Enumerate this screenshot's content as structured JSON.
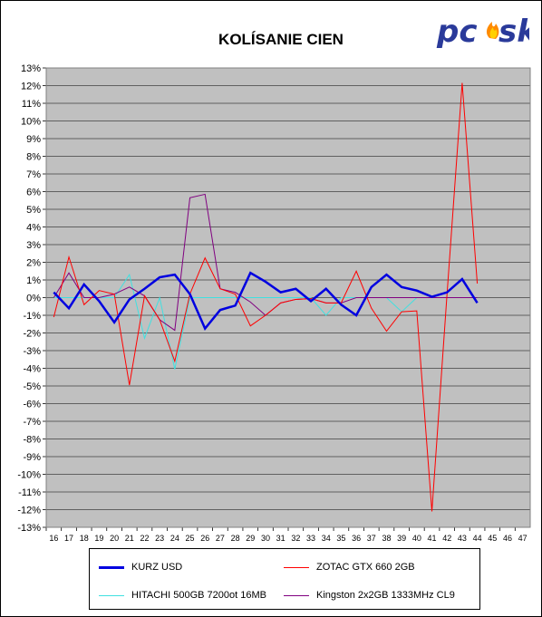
{
  "chart_data": {
    "type": "line",
    "title": "KOLÍSANIE CIEN",
    "logo_text": "pcsk",
    "xlabel": "",
    "ylabel": "",
    "x_categories": [
      "16",
      "17",
      "18",
      "19",
      "20",
      "21",
      "22",
      "23",
      "24",
      "25",
      "26",
      "27",
      "28",
      "29",
      "30",
      "31",
      "32",
      "33",
      "34",
      "35",
      "36",
      "37",
      "38",
      "39",
      "40",
      "41",
      "42",
      "43",
      "44",
      "45",
      "46",
      "47"
    ],
    "y_ticks": [
      "13%",
      "12%",
      "11%",
      "10%",
      "9%",
      "8%",
      "7%",
      "6%",
      "5%",
      "4%",
      "3%",
      "2%",
      "1%",
      "0%",
      "-1%",
      "-2%",
      "-3%",
      "-4%",
      "-5%",
      "-6%",
      "-7%",
      "-8%",
      "-9%",
      "-10%",
      "-11%",
      "-12%",
      "-13%"
    ],
    "ylim": [
      -13,
      13
    ],
    "grid": true,
    "plot_background": "#c0c0c0",
    "legend_placement": "bottom",
    "series": [
      {
        "name": "KURZ USD",
        "color": "#0000e0",
        "width": 2.5,
        "x": [
          16,
          17,
          18,
          19,
          20,
          21,
          22,
          23,
          24,
          25,
          26,
          27,
          28,
          29,
          30,
          31,
          32,
          33,
          34,
          35,
          36,
          37,
          38,
          39,
          40,
          41,
          42,
          43,
          44
        ],
        "values": [
          0.3,
          -0.6,
          0.75,
          -0.2,
          -1.4,
          -0.1,
          0.5,
          1.15,
          1.3,
          0.2,
          -1.75,
          -0.7,
          -0.45,
          1.4,
          0.9,
          0.3,
          0.5,
          -0.2,
          0.5,
          -0.4,
          -1.0,
          0.6,
          1.3,
          0.6,
          0.4,
          0.05,
          0.3,
          1.05,
          -0.3
        ]
      },
      {
        "name": "ZOTAC GTX 660 2GB",
        "color": "#ff0000",
        "width": 1,
        "x": [
          16,
          17,
          18,
          19,
          20,
          21,
          22,
          23,
          24,
          25,
          26,
          27,
          28,
          29,
          30,
          31,
          32,
          33,
          34,
          35,
          36,
          37,
          38,
          39,
          40,
          41,
          42,
          43,
          44
        ],
        "values": [
          -1.1,
          2.3,
          -0.4,
          0.4,
          0.2,
          -4.95,
          0.1,
          -1.25,
          -3.6,
          0.2,
          2.25,
          0.5,
          0.2,
          -1.6,
          -1.0,
          -0.3,
          -0.1,
          -0.05,
          -0.3,
          -0.3,
          1.5,
          -0.6,
          -1.9,
          -0.8,
          -0.75,
          -12.1,
          0.2,
          12.15,
          0.8
        ]
      },
      {
        "name": "HITACHI 500GB 7200ot 16MB",
        "color": "#40e0e0",
        "width": 1,
        "x": [
          16,
          17,
          18,
          19,
          20,
          21,
          22,
          23,
          24,
          25,
          26,
          27,
          28,
          29,
          30,
          31,
          32,
          33,
          34,
          35,
          36,
          37,
          38,
          39,
          40,
          41,
          42,
          43,
          44
        ],
        "values": [
          0.0,
          0.0,
          0.0,
          0.0,
          0.0,
          1.3,
          -2.3,
          0.0,
          -4.05,
          0.0,
          0.0,
          0.0,
          0.0,
          0.0,
          0.0,
          0.0,
          0.0,
          0.0,
          -1.0,
          0.0,
          0.0,
          0.0,
          0.0,
          -0.8,
          0.0,
          0.0,
          0.0,
          0.0,
          0.0
        ]
      },
      {
        "name": "Kingston 2x2GB 1333MHz CL9",
        "color": "#800080",
        "width": 1,
        "x": [
          16,
          17,
          18,
          19,
          20,
          21,
          22,
          23,
          24,
          25,
          26,
          27,
          28,
          29,
          30,
          31,
          32,
          33,
          34,
          35,
          36,
          37,
          38,
          39,
          40,
          41,
          42,
          43,
          44
        ],
        "values": [
          0.0,
          1.4,
          0.0,
          0.0,
          0.2,
          0.6,
          0.1,
          -1.25,
          -1.85,
          5.65,
          5.85,
          0.5,
          0.3,
          -0.25,
          -1.0,
          -0.3,
          -0.1,
          -0.05,
          -0.3,
          -0.3,
          0.0,
          0.0,
          0.0,
          0.0,
          0.0,
          0.0,
          0.0,
          0.0,
          0.0
        ]
      }
    ]
  }
}
